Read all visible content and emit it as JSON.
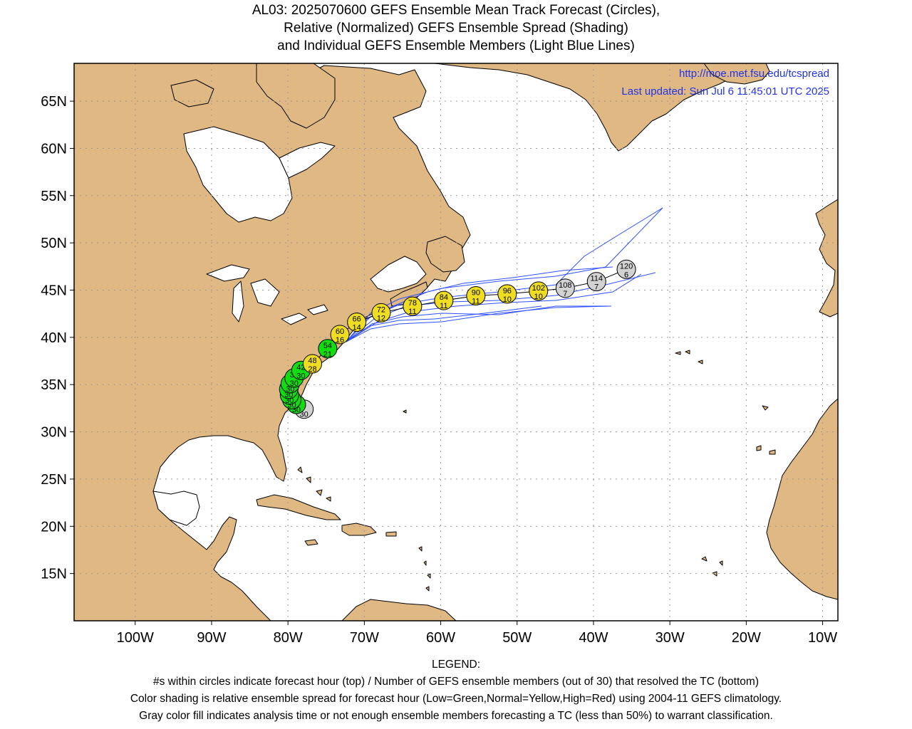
{
  "title": {
    "line1": "AL03: 2025070600 GEFS Ensemble Mean Track Forecast (Circles),",
    "line2": "Relative (Normalized) GEFS Ensemble Spread (Shading)",
    "line3": "and Individual GEFS Ensemble Members (Light Blue Lines)"
  },
  "site": {
    "url": "http://moe.met.fsu.edu/tcspread",
    "updated": "Last updated: Sun Jul 6 11:45:01 UTC 2025"
  },
  "axes": {
    "lat_labels": [
      "65N",
      "60N",
      "55N",
      "50N",
      "45N",
      "40N",
      "35N",
      "30N",
      "25N",
      "20N",
      "15N"
    ],
    "lat_values": [
      65,
      60,
      55,
      50,
      45,
      40,
      35,
      30,
      25,
      20,
      15
    ],
    "lon_labels": [
      "100W",
      "90W",
      "80W",
      "70W",
      "60W",
      "50W",
      "40W",
      "30W",
      "20W",
      "10W"
    ],
    "lon_values": [
      -100,
      -90,
      -80,
      -70,
      -60,
      -50,
      -40,
      -30,
      -20,
      -10
    ],
    "lon_range": [
      -108,
      -8
    ],
    "lat_range": [
      10,
      69
    ]
  },
  "colors": {
    "land": "#dfb883",
    "ocean": "#ffffff",
    "member_track": "#3050ff",
    "mean_track": "#000000",
    "low_spread": "#11dd11",
    "normal_spread": "#eedd22",
    "gray_fill": "#d2d2d2",
    "link": "#2233ee"
  },
  "track": [
    {
      "hour": "0",
      "members": "30",
      "lon": -77.9,
      "lat": 32.4,
      "color": "gray"
    },
    {
      "hour": "6",
      "members": "30",
      "lon": -78.9,
      "lat": 32.9,
      "color": "green"
    },
    {
      "hour": "12",
      "members": "30",
      "lon": -79.5,
      "lat": 33.4,
      "color": "green"
    },
    {
      "hour": "18",
      "members": "30",
      "lon": -79.8,
      "lat": 33.9,
      "color": "green"
    },
    {
      "hour": "24",
      "members": "30",
      "lon": -79.9,
      "lat": 34.5,
      "color": "green"
    },
    {
      "hour": "30",
      "members": "30",
      "lon": -79.7,
      "lat": 35.1,
      "color": "green"
    },
    {
      "hour": "36",
      "members": "30",
      "lon": -79.2,
      "lat": 35.7,
      "color": "green"
    },
    {
      "hour": "42",
      "members": "30",
      "lon": -78.3,
      "lat": 36.5,
      "color": "green"
    },
    {
      "hour": "48",
      "members": "28",
      "lon": -76.8,
      "lat": 37.2,
      "color": "yellow"
    },
    {
      "hour": "54",
      "members": "21",
      "lon": -74.8,
      "lat": 38.8,
      "color": "green"
    },
    {
      "hour": "60",
      "members": "16",
      "lon": -73.2,
      "lat": 40.3,
      "color": "yellow"
    },
    {
      "hour": "66",
      "members": "14",
      "lon": -71.0,
      "lat": 41.6,
      "color": "yellow"
    },
    {
      "hour": "72",
      "members": "12",
      "lon": -67.8,
      "lat": 42.6,
      "color": "yellow"
    },
    {
      "hour": "78",
      "members": "11",
      "lon": -63.7,
      "lat": 43.3,
      "color": "yellow"
    },
    {
      "hour": "84",
      "members": "11",
      "lon": -59.6,
      "lat": 43.9,
      "color": "yellow"
    },
    {
      "hour": "90",
      "members": "11",
      "lon": -55.4,
      "lat": 44.4,
      "color": "yellow"
    },
    {
      "hour": "96",
      "members": "10",
      "lon": -51.3,
      "lat": 44.6,
      "color": "yellow"
    },
    {
      "hour": "102",
      "members": "10",
      "lon": -47.2,
      "lat": 44.9,
      "color": "yellow"
    },
    {
      "hour": "108",
      "members": "7",
      "lon": -43.7,
      "lat": 45.2,
      "color": "gray"
    },
    {
      "hour": "114",
      "members": "7",
      "lon": -39.6,
      "lat": 45.9,
      "color": "gray"
    },
    {
      "hour": "120",
      "members": "6",
      "lon": -35.7,
      "lat": 47.2,
      "color": "gray"
    }
  ],
  "legend": {
    "heading": "LEGEND:",
    "line1": "#s within circles indicate forecast hour (top) / Number of GEFS ensemble members (out of 30) that resolved the TC (bottom)",
    "line2": "Color shading is relative ensemble spread for forecast hour (Low=Green,Normal=Yellow,High=Red) using 2004-11 GEFS climatology.",
    "line3": "Gray color fill indicates analysis time or not enough ensemble members forecasting a TC (less than 50%) to warrant classification."
  }
}
